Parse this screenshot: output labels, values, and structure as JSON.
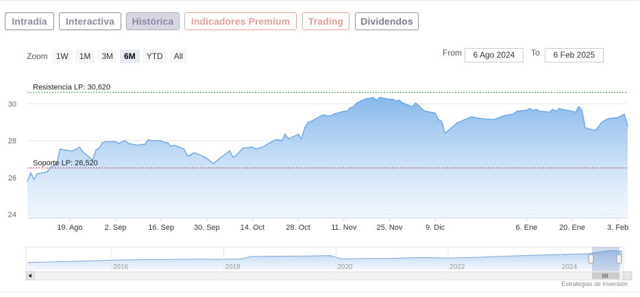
{
  "tabs": [
    {
      "label": "Intradía",
      "style": "gray"
    },
    {
      "label": "Interactiva",
      "style": "gray"
    },
    {
      "label": "Histórica",
      "style": "active"
    },
    {
      "label": "Indicadores Premium",
      "style": "red"
    },
    {
      "label": "Trading",
      "style": "red"
    },
    {
      "label": "Dividendos",
      "style": "dark"
    }
  ],
  "zoom": {
    "label": "Zoom",
    "buttons": [
      "1W",
      "1M",
      "3M",
      "6M",
      "YTD",
      "All"
    ],
    "selected": "6M"
  },
  "range": {
    "from_label": "From",
    "from_value": "6 Ago 2024",
    "to_label": "To",
    "to_value": "6 Feb 2025"
  },
  "credit": "Estrategias de Inversión",
  "navigator": {
    "year_labels": [
      "2016",
      "2018",
      "2020",
      "2022",
      "2024"
    ],
    "scroll_left_icon": "chevron-left-icon",
    "scroll_right_icon": "chevron-right-icon"
  },
  "colors": {
    "line": "#6aa7e3",
    "resistance": "#2e8b2e",
    "support": "#b22222"
  },
  "chart_data": {
    "type": "area",
    "series": [
      {
        "x": [
          "2024-08-06",
          "2024-08-07",
          "2024-08-08",
          "2024-08-09",
          "2024-08-12",
          "2024-08-13",
          "2024-08-14",
          "2024-08-15",
          "2024-08-16",
          "2024-08-19",
          "2024-08-20",
          "2024-08-21",
          "2024-08-22",
          "2024-08-23",
          "2024-08-26",
          "2024-08-27",
          "2024-08-28",
          "2024-08-29",
          "2024-08-30",
          "2024-09-02",
          "2024-09-03",
          "2024-09-04",
          "2024-09-05",
          "2024-09-06",
          "2024-09-09",
          "2024-09-10",
          "2024-09-11",
          "2024-09-12",
          "2024-09-13",
          "2024-09-16",
          "2024-09-17",
          "2024-09-18",
          "2024-09-19",
          "2024-09-20",
          "2024-09-23",
          "2024-09-24",
          "2024-09-25",
          "2024-09-26",
          "2024-09-27",
          "2024-09-30",
          "2024-10-01",
          "2024-10-02",
          "2024-10-03",
          "2024-10-04",
          "2024-10-07",
          "2024-10-08",
          "2024-10-09",
          "2024-10-10",
          "2024-10-11",
          "2024-10-14",
          "2024-10-15",
          "2024-10-16",
          "2024-10-17",
          "2024-10-18",
          "2024-10-21",
          "2024-10-22",
          "2024-10-23",
          "2024-10-24",
          "2024-10-25",
          "2024-10-28",
          "2024-10-29",
          "2024-10-30",
          "2024-10-31",
          "2024-11-01",
          "2024-11-04",
          "2024-11-05",
          "2024-11-06",
          "2024-11-07",
          "2024-11-08",
          "2024-11-11",
          "2024-11-12",
          "2024-11-13",
          "2024-11-14",
          "2024-11-15",
          "2024-11-18",
          "2024-11-19",
          "2024-11-20",
          "2024-11-21",
          "2024-11-22",
          "2024-11-25",
          "2024-11-26",
          "2024-11-27",
          "2024-11-28",
          "2024-11-29",
          "2024-12-02",
          "2024-12-03",
          "2024-12-04",
          "2024-12-05",
          "2024-12-06",
          "2024-12-09",
          "2024-12-10",
          "2024-12-11",
          "2024-12-12",
          "2024-12-13",
          "2024-12-16",
          "2024-12-17",
          "2024-12-18",
          "2024-12-19",
          "2024-12-20",
          "2024-12-23",
          "2024-12-27",
          "2024-12-30",
          "2025-01-02",
          "2025-01-03",
          "2025-01-06",
          "2025-01-07",
          "2025-01-08",
          "2025-01-09",
          "2025-01-10",
          "2025-01-13",
          "2025-01-14",
          "2025-01-15",
          "2025-01-16",
          "2025-01-17",
          "2025-01-20",
          "2025-01-21",
          "2025-01-22",
          "2025-01-23",
          "2025-01-24",
          "2025-01-27",
          "2025-01-28",
          "2025-01-29",
          "2025-01-30",
          "2025-01-31",
          "2025-02-03",
          "2025-02-04",
          "2025-02-05",
          "2025-02-06"
        ],
        "y": [
          25.8,
          26.25,
          25.9,
          26.2,
          26.3,
          26.55,
          26.65,
          26.7,
          27.55,
          27.45,
          27.45,
          27.55,
          27.65,
          27.4,
          26.95,
          27.5,
          27.6,
          27.9,
          27.95,
          27.95,
          27.85,
          27.95,
          28.0,
          27.85,
          27.75,
          27.8,
          27.8,
          28.05,
          28.0,
          28.0,
          27.9,
          27.9,
          27.7,
          27.75,
          27.55,
          27.2,
          27.2,
          27.35,
          27.3,
          27.05,
          26.9,
          26.75,
          26.9,
          27.05,
          27.45,
          27.1,
          27.2,
          27.4,
          27.6,
          27.65,
          27.55,
          27.6,
          27.65,
          27.75,
          28.05,
          28.05,
          28.0,
          28.35,
          28.1,
          28.35,
          28.1,
          28.7,
          29.0,
          29.05,
          29.35,
          29.4,
          29.35,
          29.35,
          29.45,
          29.6,
          29.6,
          29.8,
          29.85,
          30.05,
          30.3,
          30.3,
          30.35,
          30.2,
          30.35,
          30.25,
          30.25,
          30.15,
          30.2,
          30.05,
          29.85,
          30.05,
          29.9,
          29.7,
          29.6,
          29.5,
          29.15,
          29.05,
          28.4,
          28.55,
          29.0,
          29.05,
          29.15,
          29.2,
          29.3,
          29.2,
          29.15,
          29.35,
          29.45,
          29.6,
          29.65,
          29.75,
          29.65,
          29.7,
          29.6,
          29.55,
          29.7,
          29.6,
          29.75,
          29.7,
          29.6,
          29.55,
          29.85,
          29.65,
          28.7,
          28.55,
          28.75,
          29.0,
          29.1,
          29.2,
          29.25,
          29.35,
          29.45,
          28.8
        ]
      }
    ],
    "yaxis": {
      "ticks": [
        24,
        26,
        28,
        30
      ],
      "ylim": [
        23.8,
        31.8
      ]
    },
    "xaxis": {
      "ticks": [
        {
          "label": "19. Ago",
          "date": "2024-08-19"
        },
        {
          "label": "2. Sep",
          "date": "2024-09-02"
        },
        {
          "label": "16. Sep",
          "date": "2024-09-16"
        },
        {
          "label": "30. Sep",
          "date": "2024-09-30"
        },
        {
          "label": "14. Oct",
          "date": "2024-10-14"
        },
        {
          "label": "28. Oct",
          "date": "2024-10-28"
        },
        {
          "label": "11. Nov",
          "date": "2024-11-11"
        },
        {
          "label": "25. Nov",
          "date": "2024-11-25"
        },
        {
          "label": "9. Dic",
          "date": "2024-12-09"
        },
        {
          "label": "6. Ene",
          "date": "2025-01-06"
        },
        {
          "label": "20. Ene",
          "date": "2025-01-20"
        },
        {
          "label": "3. Feb",
          "date": "2025-02-03"
        }
      ]
    },
    "annotations": [
      {
        "label": "Resistencia LP: 30,620",
        "value": 30.62,
        "style": "resistance"
      },
      {
        "label": "Soporte LP: 26,520",
        "value": 26.52,
        "style": "support"
      }
    ],
    "navigator_series": {
      "x": [
        2014.5,
        2015,
        2015.5,
        2016,
        2016.5,
        2017,
        2017.5,
        2018,
        2018.3,
        2018.5,
        2019,
        2019.5,
        2019.9,
        2020.1,
        2020.5,
        2021,
        2021.5,
        2022,
        2022.5,
        2023,
        2023.5,
        2024,
        2024.5,
        2024.9,
        2025.1
      ],
      "y": [
        23.5,
        23.8,
        24.2,
        24.6,
        24.8,
        24.9,
        25.1,
        25.0,
        25.2,
        26.3,
        26.4,
        26.5,
        26.7,
        25.2,
        25.4,
        25.4,
        25.8,
        25.6,
        25.9,
        26.4,
        26.8,
        27.2,
        27.6,
        29.0,
        28.7
      ]
    },
    "grid": true,
    "legend": "none"
  }
}
